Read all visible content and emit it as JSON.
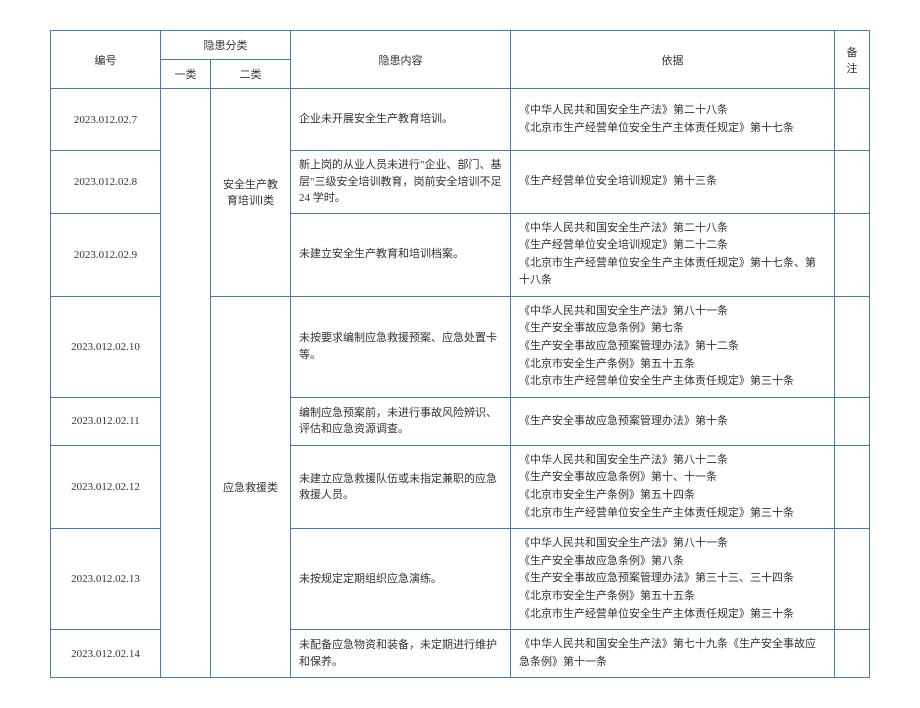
{
  "headers": {
    "id": "编号",
    "cat_group": "隐患分类",
    "cat1": "一类",
    "cat2": "二类",
    "content": "隐患内容",
    "basis": "依据",
    "note": "备注"
  },
  "cat2_a": "安全生产教育培训Ⅰ类",
  "cat2_b": "应急救援类",
  "rows": [
    {
      "id": "2023.012.02.7",
      "content": "企业未开展安全生产教育培训。",
      "basis": "《中华人民共和国安全生产法》第二十八条\n《北京市生产经营单位安全生产主体责任规定》第十七条"
    },
    {
      "id": "2023.012.02.8",
      "content": "新上岗的从业人员未进行\"企业、部门、基层\"三级安全培训教育，岗前安全培训不足24 学时。",
      "basis": "《生产经营单位安全培训规定》第十三条"
    },
    {
      "id": "2023.012.02.9",
      "content": "未建立安全生产教育和培训档案。",
      "basis": "《中华人民共和国安全生产法》第二十八条\n《生产经营单位安全培训规定》第二十二条\n《北京市生产经营单位安全生产主体责任规定》第十七条、第十八条"
    },
    {
      "id": "2023.012.02.10",
      "content": "未按要求编制应急救援预案、应急处置卡等。",
      "basis": "《中华人民共和国安全生产法》第八十一条\n《生产安全事故应急条例》第七条\n《生产安全事故应急预案管理办法》第十二条\n《北京市安全生产条例》第五十五条\n《北京市生产经营单位安全生产主体责任规定》第三十条"
    },
    {
      "id": "2023.012.02.11",
      "content": "编制应急预案前，未进行事故风险辨识、评估和应急资源调查。",
      "basis": "《生产安全事故应急预案管理办法》第十条"
    },
    {
      "id": "2023.012.02.12",
      "content": "未建立应急救援队伍或未指定兼职的应急救援人员。",
      "basis": "《中华人民共和国安全生产法》第八十二条\n《生产安全事故应急条例》第十、十一条\n《北京市安全生产条例》第五十四条\n《北京市生产经营单位安全生产主体责任规定》第三十条"
    },
    {
      "id": "2023.012.02.13",
      "content": "未按规定定期组织应急演练。",
      "basis": "《中华人民共和国安全生产法》第八十一条\n《生产安全事故应急条例》第八条\n《生产安全事故应急预案管理办法》第三十三、三十四条\n《北京市安全生产条例》第五十五条\n《北京市生产经营单位安全生产主体责任规定》第三十条"
    },
    {
      "id": "2023.012.02.14",
      "content": "未配备应急物资和装备，未定期进行维护和保养。",
      "basis": "《中华人民共和国安全生产法》第七十九条《生产安全事故应急条例》第十一条"
    }
  ]
}
